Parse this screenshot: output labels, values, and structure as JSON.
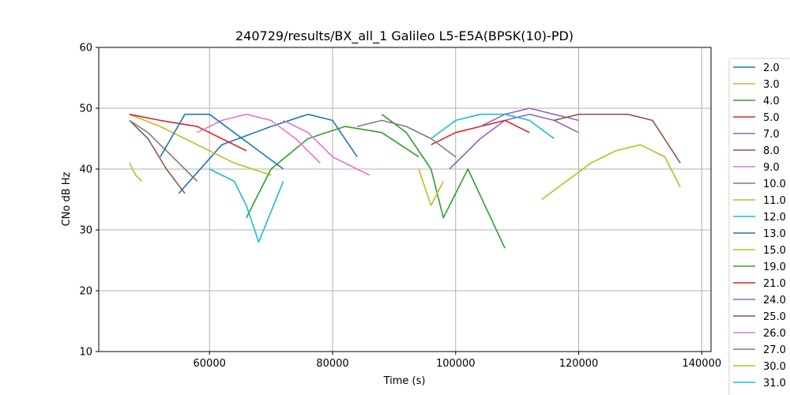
{
  "chart_data": {
    "type": "line",
    "title": "240729/results/BX_all_1 Galileo L5-E5A(BPSK(10)-PD)",
    "xlabel": "Time (s)",
    "ylabel": "CNo dB Hz",
    "xlim": [
      42000,
      141500
    ],
    "ylim": [
      10,
      60
    ],
    "xticks": [
      60000,
      80000,
      100000,
      120000,
      140000
    ],
    "xtick_labels": [
      "60000",
      "80000",
      "100000",
      "120000",
      "140000"
    ],
    "yticks": [
      10,
      20,
      30,
      40,
      50,
      60
    ],
    "ytick_labels": [
      "10",
      "20",
      "30",
      "40",
      "50",
      "60"
    ],
    "grid": true,
    "legend_position": "right, outside plot",
    "series": [
      {
        "name": "2.0",
        "color": "#1f77b4",
        "x": [
          55000,
          62000,
          70000,
          76000,
          80000,
          84000
        ],
        "y": [
          36,
          44,
          47,
          49,
          48,
          42
        ]
      },
      {
        "name": "3.0",
        "color": "#bcbd22",
        "x": [
          47000,
          52000,
          58000,
          64000,
          70000
        ],
        "y": [
          49,
          47,
          44,
          41,
          39
        ]
      },
      {
        "name": "4.0",
        "color": "#2ca02c",
        "x": [
          66000,
          70000,
          76000,
          82000,
          88000,
          94000
        ],
        "y": [
          32,
          40,
          45,
          47,
          46,
          42
        ]
      },
      {
        "name": "5.0",
        "color": "#d62728",
        "x": [
          47000,
          52000,
          58000,
          62000,
          66000
        ],
        "y": [
          49,
          48,
          47,
          45,
          43
        ]
      },
      {
        "name": "7.0",
        "color": "#9467bd",
        "x": [
          99000,
          104000,
          108000,
          112000,
          116000,
          120000
        ],
        "y": [
          40,
          45,
          48,
          49,
          48,
          46
        ]
      },
      {
        "name": "8.0",
        "color": "#8c564b",
        "x": [
          47000,
          50000,
          53000,
          56000
        ],
        "y": [
          48,
          45,
          40,
          36
        ]
      },
      {
        "name": "9.0",
        "color": "#e377c2",
        "x": [
          58000,
          62000,
          66000,
          70000,
          74000,
          78000
        ],
        "y": [
          46,
          48,
          49,
          48,
          45,
          41
        ]
      },
      {
        "name": "10.0",
        "color": "#7f7f7f",
        "x": [
          47000,
          50000,
          53000,
          56000,
          58000
        ],
        "y": [
          48,
          46,
          43,
          40,
          38
        ]
      },
      {
        "name": "11.0",
        "color": "#bcbd22",
        "x": [
          47000,
          48000,
          49000
        ],
        "y": [
          41,
          39,
          38
        ]
      },
      {
        "name": "12.0",
        "color": "#17becf",
        "x": [
          60000,
          64000,
          66000,
          68000,
          72000
        ],
        "y": [
          40,
          38,
          34,
          28,
          38
        ]
      },
      {
        "name": "13.0",
        "color": "#1f77b4",
        "x": [
          52000,
          56000,
          60000,
          64000,
          68000,
          72000
        ],
        "y": [
          42,
          49,
          49,
          46,
          43,
          40
        ]
      },
      {
        "name": "15.0",
        "color": "#bcbd22",
        "x": [
          114000,
          118000,
          122000,
          126000,
          130000,
          134000,
          136500
        ],
        "y": [
          35,
          38,
          41,
          43,
          44,
          42,
          37
        ]
      },
      {
        "name": "19.0",
        "color": "#2ca02c",
        "x": [
          88000,
          92000,
          96000,
          98000,
          102000,
          108000
        ],
        "y": [
          49,
          46,
          40,
          32,
          40,
          27
        ]
      },
      {
        "name": "21.0",
        "color": "#d62728",
        "x": [
          96000,
          100000,
          104000,
          108000,
          112000
        ],
        "y": [
          44,
          46,
          47,
          48,
          46
        ]
      },
      {
        "name": "24.0",
        "color": "#9467bd",
        "x": [
          104000,
          108000,
          112000,
          116000,
          120000
        ],
        "y": [
          47,
          49,
          50,
          49,
          48
        ]
      },
      {
        "name": "25.0",
        "color": "#8c564b",
        "x": [
          116000,
          120000,
          124000,
          128000,
          132000,
          136500
        ],
        "y": [
          48,
          49,
          49,
          49,
          48,
          41
        ]
      },
      {
        "name": "26.0",
        "color": "#e377c2",
        "x": [
          72000,
          76000,
          80000,
          84000,
          86000
        ],
        "y": [
          48,
          46,
          42,
          40,
          39
        ]
      },
      {
        "name": "27.0",
        "color": "#7f7f7f",
        "x": [
          84000,
          88000,
          92000,
          96000,
          100000
        ],
        "y": [
          47,
          48,
          47,
          45,
          42
        ]
      },
      {
        "name": "30.0",
        "color": "#bcbd22",
        "x": [
          94000,
          96000,
          98000
        ],
        "y": [
          40,
          34,
          38
        ]
      },
      {
        "name": "31.0",
        "color": "#17becf",
        "x": [
          96000,
          100000,
          104000,
          108000,
          112000,
          116000
        ],
        "y": [
          45,
          48,
          49,
          49,
          48,
          45
        ]
      }
    ]
  }
}
